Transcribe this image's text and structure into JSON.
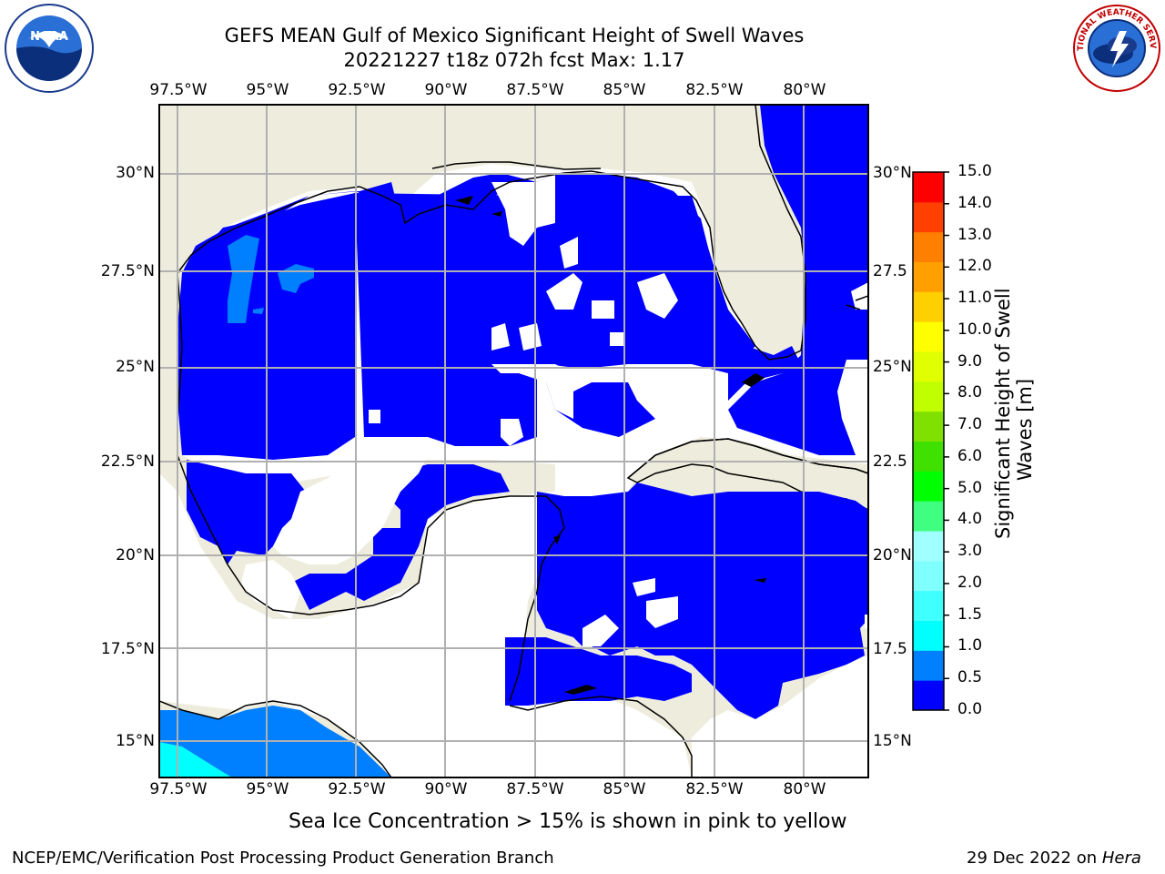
{
  "header": {
    "title_line1": "GEFS MEAN Gulf of Mexico Significant Height of Swell Waves",
    "title_line2": "20221227 t18z 072h fcst   Max: 1.17"
  },
  "logos": {
    "left": "NOAA",
    "right": "NATIONAL WEATHER SERVICE"
  },
  "map": {
    "lon_labels": [
      "97.5°W",
      "95°W",
      "92.5°W",
      "90°W",
      "87.5°W",
      "85°W",
      "82.5°W",
      "80°W"
    ],
    "lat_labels_left": [
      "30°N",
      "27.5°N",
      "25°N",
      "22.5°N",
      "20°N",
      "17.5°N",
      "15°N"
    ],
    "lat_labels_right": [
      "30°N",
      "27.5",
      "25°N",
      "22.5",
      "20°N",
      "17.5",
      "15°N"
    ],
    "colors": {
      "land": "#eeeddd",
      "ocean_band_0": "#0000ff",
      "ocean_band_1": "#0080ff",
      "ocean_band_2": "#00ffff",
      "grid": "#b0b0b0"
    }
  },
  "colorbar": {
    "tick_labels": [
      "15.0",
      "14.0",
      "13.0",
      "12.0",
      "11.0",
      "10.0",
      "9.0",
      "8.0",
      "7.0",
      "6.0",
      "5.0",
      "4.0",
      "3.0",
      "2.0",
      "1.5",
      "1.0",
      "0.5",
      "0.0"
    ],
    "colors": [
      "#0000ff",
      "#0080ff",
      "#00ffff",
      "#40ffff",
      "#80ffff",
      "#a0ffff",
      "#40ff80",
      "#00ff00",
      "#40e000",
      "#80e000",
      "#c0ff00",
      "#e0ff00",
      "#ffff00",
      "#ffd000",
      "#ffa000",
      "#ff8000",
      "#ff4000",
      "#ff0000"
    ],
    "label_line1": "Significant Height of Swell",
    "label_line2": "Waves [m]"
  },
  "notes": {
    "sea_ice": "Sea Ice Concentration > 15% is shown in pink to yellow"
  },
  "footer": {
    "left": "NCEP/EMC/Verification Post Processing Product Generation Branch",
    "date": "29 Dec 2022 on ",
    "host": "Hera"
  }
}
